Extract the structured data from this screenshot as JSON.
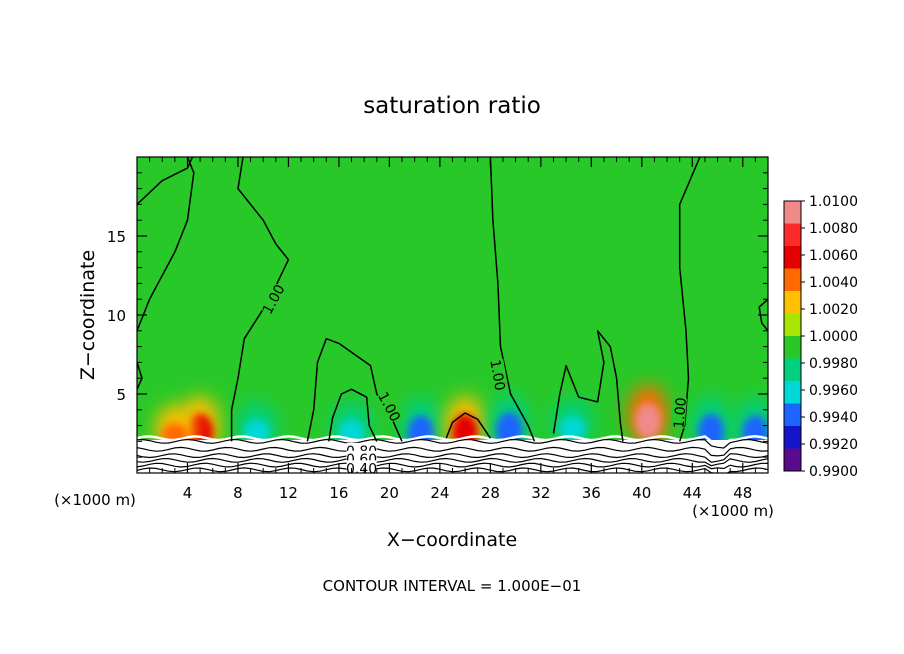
{
  "chart_data": {
    "type": "heatmap",
    "title": "saturation ratio",
    "xlabel": "X−coordinate",
    "ylabel": "Z−coordinate",
    "x_unit_left": "(×1000 m)",
    "x_unit_right": "(×1000 m)",
    "footer": "CONTOUR INTERVAL = 1.000E−01",
    "xlim": [
      0,
      50
    ],
    "ylim": [
      0,
      20
    ],
    "x_ticks": [
      {
        "v": 4,
        "label": "4"
      },
      {
        "v": 8,
        "label": "8"
      },
      {
        "v": 12,
        "label": "12"
      },
      {
        "v": 16,
        "label": "16"
      },
      {
        "v": 20,
        "label": "20"
      },
      {
        "v": 24,
        "label": "24"
      },
      {
        "v": 28,
        "label": "28"
      },
      {
        "v": 32,
        "label": "32"
      },
      {
        "v": 36,
        "label": "36"
      },
      {
        "v": 40,
        "label": "40"
      },
      {
        "v": 44,
        "label": "44"
      },
      {
        "v": 48,
        "label": "48"
      }
    ],
    "y_ticks": [
      {
        "v": 5,
        "label": "5"
      },
      {
        "v": 10,
        "label": "10"
      },
      {
        "v": 15,
        "label": "15"
      }
    ],
    "colorbar": {
      "range": [
        0.99,
        1.01
      ],
      "labels": [
        "1.0100",
        "1.0080",
        "1.0060",
        "1.0040",
        "1.0020",
        "1.0000",
        "0.9980",
        "0.9960",
        "0.9940",
        "0.9920",
        "0.9900"
      ],
      "colors": [
        "#f08a8a",
        "#ff2a2a",
        "#e40000",
        "#ff6a00",
        "#ffc000",
        "#a8e600",
        "#28c828",
        "#00d080",
        "#00d8d8",
        "#1e64ff",
        "#1414c8",
        "#5a0a8c"
      ]
    },
    "background_value": 1.0,
    "anomalies": [
      {
        "x": 5.0,
        "z": 2.6,
        "value": 1.0065
      },
      {
        "x": 3.0,
        "z": 2.4,
        "value": 1.0045
      },
      {
        "x": 9.5,
        "z": 2.6,
        "value": 0.9955
      },
      {
        "x": 17.0,
        "z": 2.6,
        "value": 0.9958
      },
      {
        "x": 22.5,
        "z": 2.5,
        "value": 0.9935
      },
      {
        "x": 26.0,
        "z": 2.6,
        "value": 1.006
      },
      {
        "x": 29.5,
        "z": 2.7,
        "value": 0.994
      },
      {
        "x": 34.5,
        "z": 2.8,
        "value": 0.996
      },
      {
        "x": 40.5,
        "z": 3.3,
        "value": 1.0085
      },
      {
        "x": 45.5,
        "z": 2.6,
        "value": 0.9935
      },
      {
        "x": 49.0,
        "z": 2.5,
        "value": 0.9945
      }
    ],
    "contour_labels": [
      {
        "x": 10.8,
        "z": 11.0,
        "label": "1.00",
        "rotate": -62
      },
      {
        "x": 20.0,
        "z": 4.2,
        "label": "1.00",
        "rotate": 62
      },
      {
        "x": 28.6,
        "z": 6.2,
        "label": "1.00",
        "rotate": 80
      },
      {
        "x": 43.0,
        "z": 3.8,
        "label": "1.00",
        "rotate": -85
      },
      {
        "x": 17.8,
        "z": 1.4,
        "label": "0.80",
        "rotate": 0
      },
      {
        "x": 17.8,
        "z": 0.9,
        "label": "0.60",
        "rotate": 0
      },
      {
        "x": 17.8,
        "z": 0.3,
        "label": "0.40",
        "rotate": 0
      }
    ],
    "contour_lines": [
      [
        [
          0,
          17
        ],
        [
          2,
          18.5
        ],
        [
          4,
          19.3
        ],
        [
          4.4,
          20
        ]
      ],
      [
        [
          0,
          9
        ],
        [
          1,
          11
        ],
        [
          3,
          14
        ],
        [
          4,
          16
        ],
        [
          4.5,
          19
        ],
        [
          4,
          20
        ]
      ],
      [
        [
          8.4,
          20
        ],
        [
          8,
          18
        ],
        [
          10,
          16
        ],
        [
          11,
          14.5
        ],
        [
          12,
          13.5
        ],
        [
          10.5,
          11
        ],
        [
          8.5,
          8.5
        ],
        [
          8,
          6
        ],
        [
          7.5,
          4
        ],
        [
          7.5,
          2
        ]
      ],
      [
        [
          13.5,
          2
        ],
        [
          14,
          4
        ],
        [
          14.3,
          7
        ],
        [
          15,
          8.5
        ],
        [
          16,
          8.2
        ],
        [
          18.5,
          6.8
        ],
        [
          19,
          5
        ],
        [
          20,
          3.8
        ],
        [
          21,
          2
        ]
      ],
      [
        [
          15.2,
          2
        ],
        [
          15.5,
          3.5
        ],
        [
          16.2,
          5
        ],
        [
          17,
          5.3
        ],
        [
          18.2,
          4.8
        ],
        [
          18.4,
          3
        ],
        [
          19,
          2
        ]
      ],
      [
        [
          24.5,
          2.2
        ],
        [
          25,
          3.2
        ],
        [
          26,
          3.8
        ],
        [
          27,
          3.4
        ],
        [
          28,
          2.2
        ]
      ],
      [
        [
          28,
          20
        ],
        [
          28.2,
          16
        ],
        [
          28.6,
          12
        ],
        [
          28.8,
          8
        ],
        [
          29.6,
          5
        ],
        [
          31,
          3
        ],
        [
          31.5,
          2
        ]
      ],
      [
        [
          33,
          2.5
        ],
        [
          33.5,
          5
        ],
        [
          34,
          6.8
        ],
        [
          35,
          4.8
        ],
        [
          36.5,
          4.5
        ],
        [
          37,
          7
        ],
        [
          36.5,
          9
        ],
        [
          37.5,
          8
        ],
        [
          38,
          6
        ],
        [
          38.3,
          3.2
        ],
        [
          38.5,
          2
        ]
      ],
      [
        [
          44.6,
          20
        ],
        [
          43,
          17
        ],
        [
          43,
          13
        ],
        [
          43.5,
          9
        ],
        [
          43.7,
          6
        ],
        [
          43.4,
          3
        ],
        [
          43,
          2
        ]
      ],
      [
        [
          50,
          9
        ],
        [
          49.5,
          9.5
        ],
        [
          49.3,
          10.5
        ],
        [
          50,
          11
        ]
      ],
      [
        [
          0,
          7
        ],
        [
          0.4,
          6
        ],
        [
          0,
          5.3
        ]
      ]
    ],
    "terrain_lines": [
      {
        "z": 2.2,
        "color": "#ffffff"
      },
      {
        "z": 2.0,
        "color": "#000000"
      },
      {
        "z": 1.5,
        "color": "#000000"
      },
      {
        "z": 1.1,
        "color": "#000000"
      },
      {
        "z": 0.8,
        "color": "#000000"
      },
      {
        "z": 0.5,
        "color": "#000000"
      },
      {
        "z": 0.2,
        "color": "#000000"
      }
    ]
  }
}
